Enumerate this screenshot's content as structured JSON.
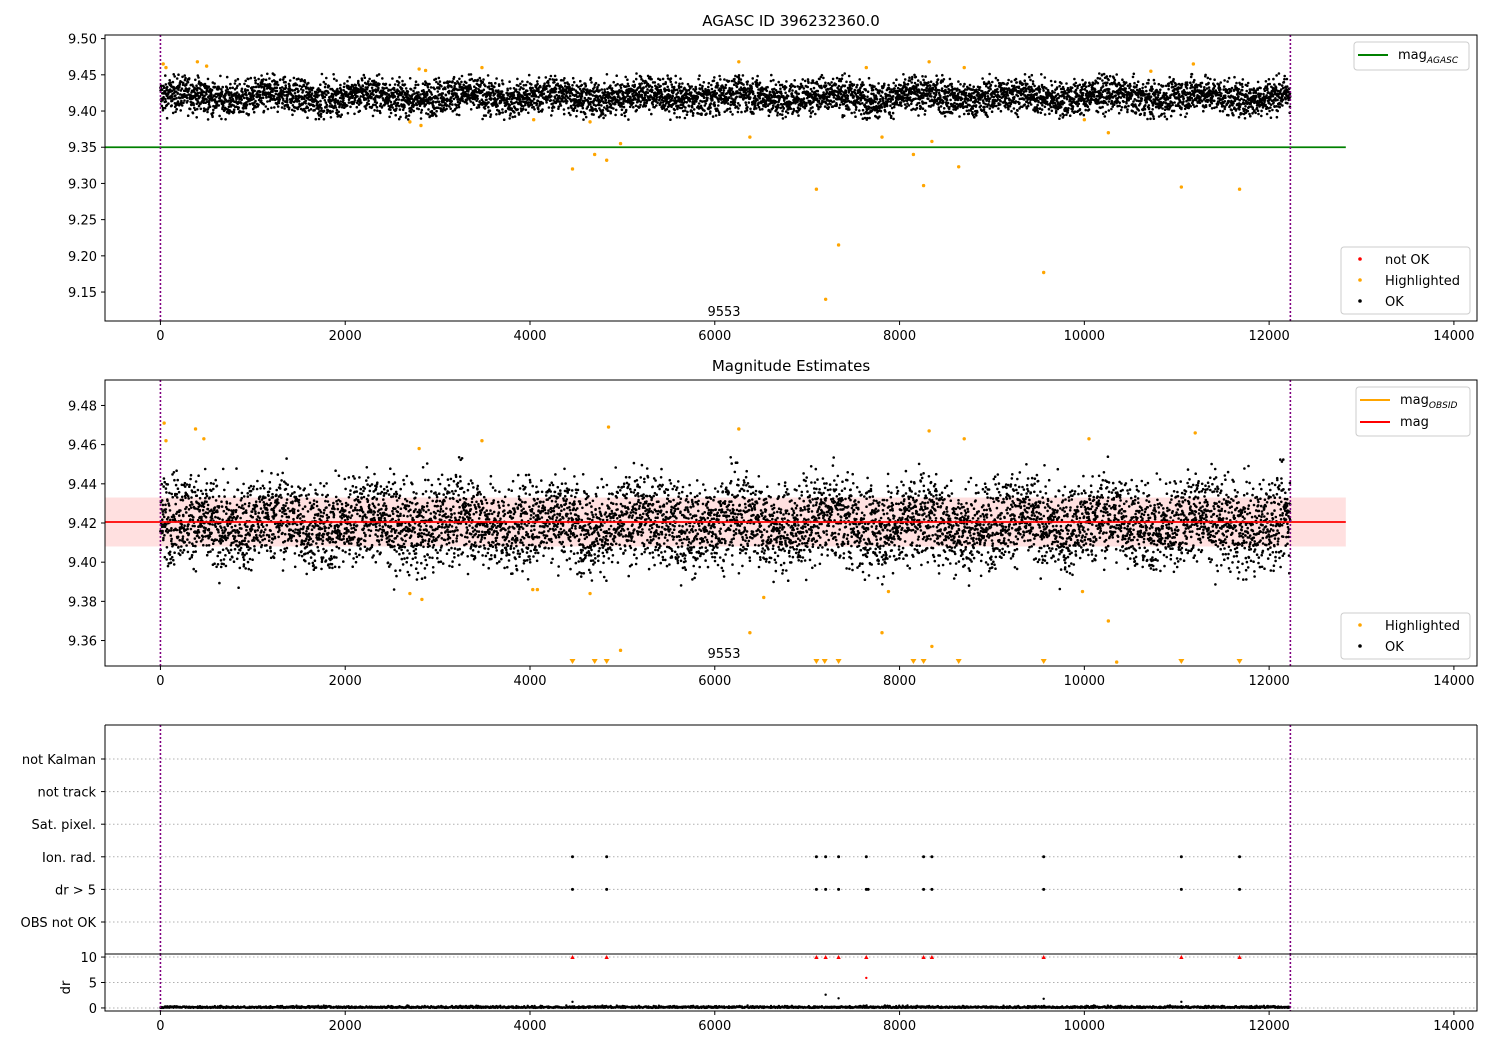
{
  "chart_data": [
    {
      "type": "scatter",
      "title": "AGASC ID 396232360.0",
      "xlim": [
        -600,
        14250
      ],
      "ylim": [
        9.11,
        9.505
      ],
      "xticks": [
        0,
        2000,
        4000,
        6000,
        8000,
        10000,
        12000,
        14000
      ],
      "yticks": [
        9.15,
        9.2,
        9.25,
        9.3,
        9.35,
        9.4,
        9.45,
        9.5
      ],
      "reference_line": {
        "name": "mag",
        "subscript": "AGASC",
        "y": 9.35,
        "x_range": [
          -600,
          12830
        ],
        "color": "#008000"
      },
      "vlines": [
        0,
        12230
      ],
      "annotation": {
        "text": "9553",
        "x": 6100,
        "y": 9.117
      },
      "legend_top": [
        {
          "label": "mag",
          "subscript": "AGASC",
          "color": "#008000",
          "kind": "line"
        }
      ],
      "legend_bottom": [
        {
          "label": "not OK",
          "color": "#ff0000",
          "kind": "point"
        },
        {
          "label": "Highlighted",
          "color": "#ffa500",
          "kind": "point"
        },
        {
          "label": "OK",
          "color": "#000000",
          "kind": "point"
        }
      ],
      "ok_band": {
        "x_range": [
          0,
          12230
        ],
        "center": 9.42,
        "spread": 0.012,
        "clip": [
          9.388,
          9.452
        ],
        "period": 1000
      },
      "highlighted": [
        [
          30,
          9.465
        ],
        [
          60,
          9.46
        ],
        [
          400,
          9.468
        ],
        [
          500,
          9.462
        ],
        [
          2700,
          9.385
        ],
        [
          2820,
          9.38
        ],
        [
          2800,
          9.458
        ],
        [
          2870,
          9.456
        ],
        [
          3480,
          9.46
        ],
        [
          4040,
          9.388
        ],
        [
          4460,
          9.32
        ],
        [
          4650,
          9.385
        ],
        [
          4700,
          9.34
        ],
        [
          4830,
          9.332
        ],
        [
          4980,
          9.355
        ],
        [
          6380,
          9.364
        ],
        [
          7100,
          9.292
        ],
        [
          7340,
          9.215
        ],
        [
          7200,
          9.14
        ],
        [
          7810,
          9.364
        ],
        [
          8150,
          9.34
        ],
        [
          8260,
          9.297
        ],
        [
          8350,
          9.358
        ],
        [
          8320,
          9.468
        ],
        [
          8640,
          9.323
        ],
        [
          9560,
          9.177
        ],
        [
          10000,
          9.388
        ],
        [
          10260,
          9.37
        ],
        [
          11050,
          9.295
        ],
        [
          11680,
          9.292
        ],
        [
          6260,
          9.468
        ],
        [
          7640,
          9.46
        ],
        [
          8700,
          9.46
        ],
        [
          10720,
          9.455
        ],
        [
          11180,
          9.465
        ]
      ]
    },
    {
      "type": "scatter",
      "title": "Magnitude Estimates",
      "xlim": [
        -600,
        14250
      ],
      "ylim": [
        9.347,
        9.493
      ],
      "xticks": [
        0,
        2000,
        4000,
        6000,
        8000,
        10000,
        12000,
        14000
      ],
      "yticks": [
        9.36,
        9.38,
        9.4,
        9.42,
        9.44,
        9.46,
        9.48
      ],
      "mag_line": {
        "name": "mag",
        "y": 9.4205,
        "x_range": [
          -600,
          12830
        ],
        "color": "#ff0000"
      },
      "band": {
        "y_range": [
          9.408,
          9.433
        ],
        "x_range": [
          -600,
          12830
        ],
        "color": "#ffcccc"
      },
      "vlines": [
        0,
        12230
      ],
      "annotation": {
        "text": "9553",
        "x": 6100,
        "y": 9.351
      },
      "legend_top": [
        {
          "label": "mag",
          "subscript": "OBSID",
          "color": "#ffa500",
          "kind": "line"
        },
        {
          "label": "mag",
          "subscript": "",
          "color": "#ff0000",
          "kind": "line"
        }
      ],
      "legend_bottom": [
        {
          "label": "Highlighted",
          "color": "#ffa500",
          "kind": "point"
        },
        {
          "label": "OK",
          "color": "#000000",
          "kind": "point"
        }
      ],
      "ok_band": {
        "x_range": [
          0,
          12230
        ],
        "center": 9.42,
        "spread": 0.011,
        "clip": [
          9.386,
          9.454
        ],
        "period": 1000
      },
      "highlighted": [
        [
          40,
          9.471
        ],
        [
          60,
          9.462
        ],
        [
          380,
          9.468
        ],
        [
          470,
          9.463
        ],
        [
          2700,
          9.384
        ],
        [
          2830,
          9.381
        ],
        [
          2800,
          9.458
        ],
        [
          3480,
          9.462
        ],
        [
          4030,
          9.386
        ],
        [
          4080,
          9.386
        ],
        [
          4650,
          9.384
        ],
        [
          4980,
          9.355
        ],
        [
          6380,
          9.364
        ],
        [
          6530,
          9.382
        ],
        [
          7810,
          9.364
        ],
        [
          7880,
          9.385
        ],
        [
          8350,
          9.357
        ],
        [
          8320,
          9.467
        ],
        [
          9980,
          9.385
        ],
        [
          10260,
          9.37
        ],
        [
          10350,
          9.349
        ],
        [
          4850,
          9.469
        ],
        [
          6260,
          9.468
        ],
        [
          8700,
          9.463
        ],
        [
          10050,
          9.463
        ],
        [
          11200,
          9.466
        ]
      ],
      "clipped_markers_x": [
        4460,
        4700,
        4830,
        7100,
        7190,
        7340,
        8150,
        8260,
        8640,
        9560,
        11050,
        11680
      ]
    },
    {
      "type": "scatter",
      "title": "",
      "xlim": [
        -600,
        14250
      ],
      "categories": [
        "not Kalman",
        "not track",
        "Sat. pixel.",
        "Ion. rad.",
        "dr > 5",
        "OBS not OK"
      ],
      "vlines": [
        0,
        12230
      ],
      "flags": {
        "Ion. rad.": [
          4460,
          4830,
          7100,
          7200,
          7340,
          7640,
          8260,
          8350,
          9560,
          11050,
          11680
        ],
        "dr > 5": [
          4460,
          4830,
          7100,
          7200,
          7340,
          7640,
          7660,
          8260,
          8350,
          9560,
          11050,
          11680
        ]
      }
    },
    {
      "type": "scatter",
      "title": "",
      "ylabel": "dr",
      "xlim": [
        -600,
        14250
      ],
      "ylim": [
        -0.6,
        10.6
      ],
      "xticks": [
        0,
        2000,
        4000,
        6000,
        8000,
        10000,
        12000,
        14000
      ],
      "yticks": [
        0,
        5,
        10
      ],
      "vlines": [
        0,
        12230
      ],
      "clipped_markers_x": [
        4460,
        4830,
        7100,
        7200,
        7340,
        7640,
        8260,
        8350,
        9560,
        11050,
        11680
      ],
      "outliers": [
        [
          7640,
          5.9
        ],
        [
          7200,
          2.6
        ],
        [
          7340,
          1.9
        ],
        [
          9560,
          1.8
        ],
        [
          4460,
          1.2
        ],
        [
          11050,
          1.2
        ]
      ]
    }
  ]
}
